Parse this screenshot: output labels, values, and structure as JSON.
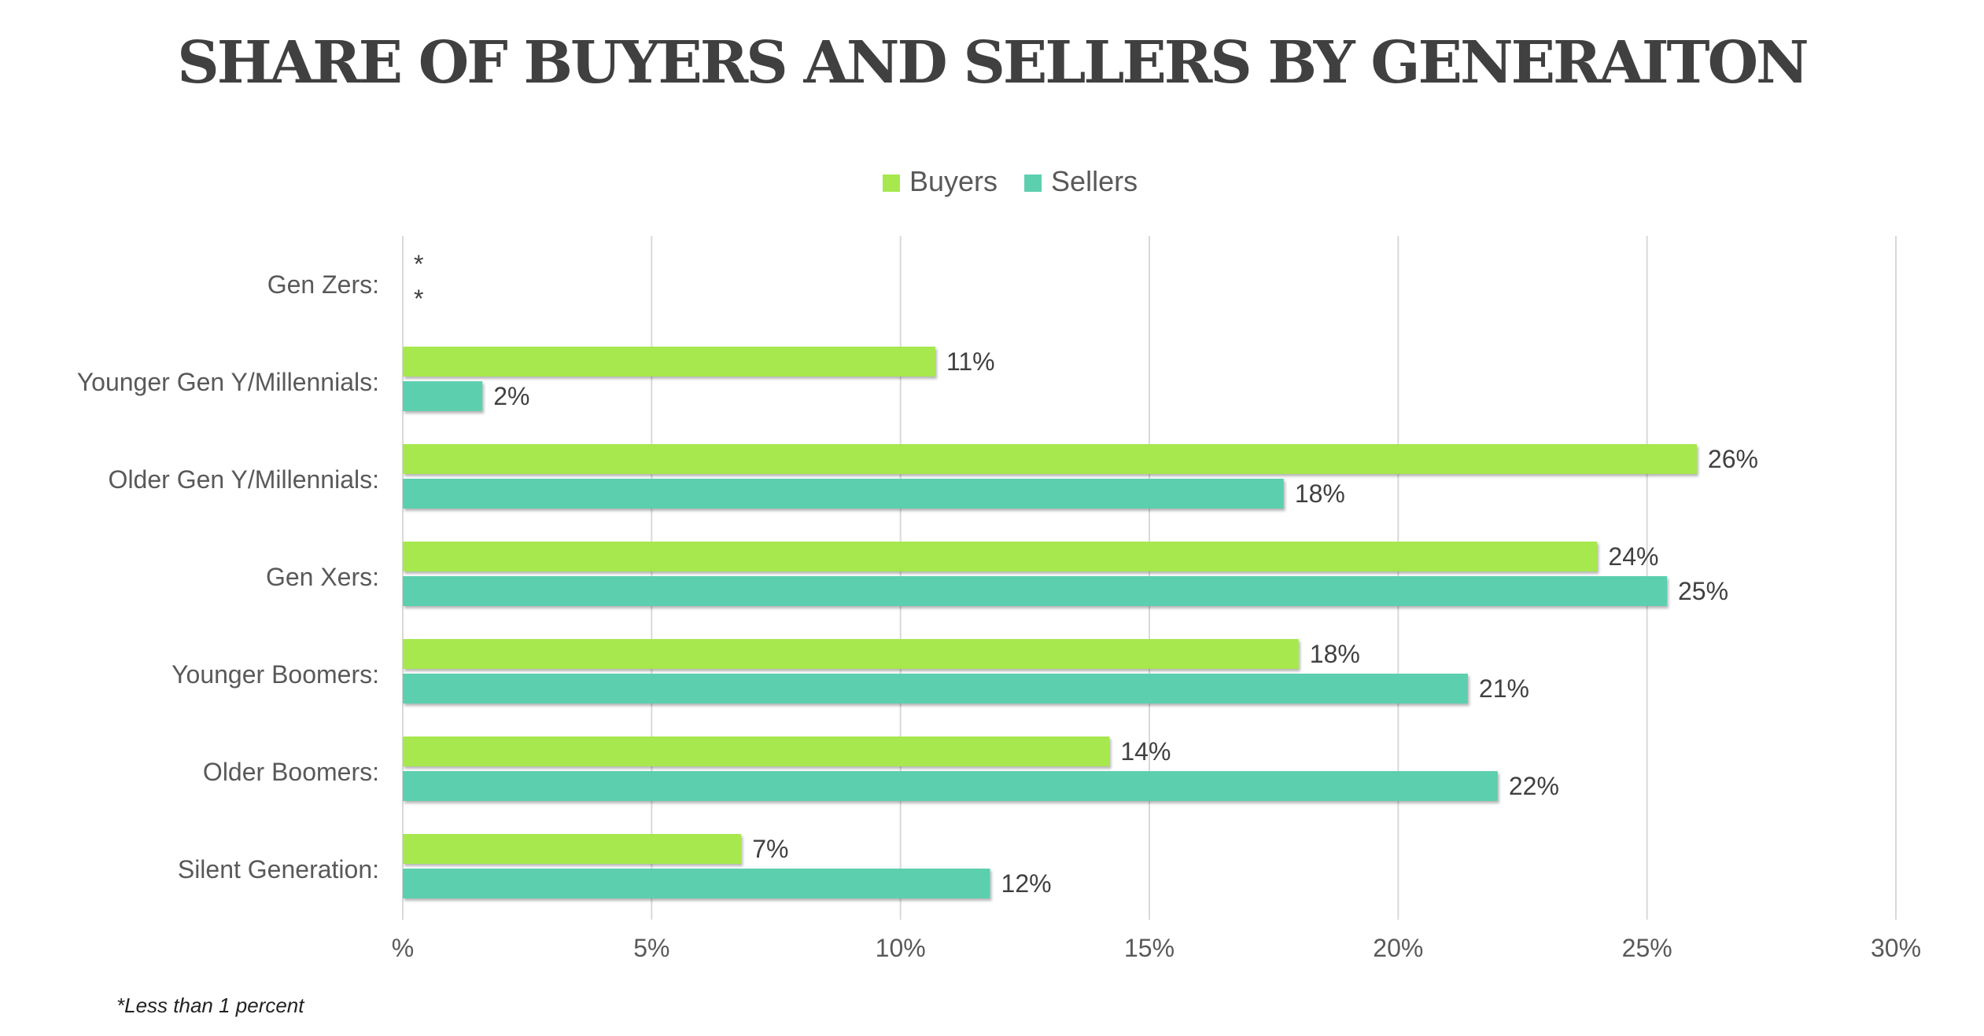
{
  "chart_data": {
    "type": "bar",
    "orientation": "horizontal",
    "title": "SHARE OF BUYERS AND SELLERS BY GENERAITON",
    "categories": [
      "Gen Zers:",
      "Younger Gen Y/Millennials:",
      "Older Gen Y/Millennials:",
      "Gen Xers:",
      "Younger Boomers:",
      "Older Boomers:",
      "Silent Generation:"
    ],
    "series": [
      {
        "name": "Buyers",
        "color": "#a6e84e",
        "values": [
          0.5,
          10.7,
          26.0,
          24.0,
          18.0,
          14.2,
          6.8
        ],
        "labels": [
          "*",
          "11%",
          "26%",
          "24%",
          "18%",
          "14%",
          "7%"
        ]
      },
      {
        "name": "Sellers",
        "color": "#5ccfae",
        "values": [
          0.5,
          1.6,
          17.7,
          25.4,
          21.4,
          22.0,
          11.8
        ],
        "labels": [
          "*",
          "2%",
          "18%",
          "25%",
          "21%",
          "22%",
          "12%"
        ]
      }
    ],
    "xlim": [
      0,
      30
    ],
    "xticks": [
      0,
      5,
      10,
      15,
      20,
      25,
      30
    ],
    "xtick_labels": [
      "%",
      "5%",
      "10%",
      "15%",
      "20%",
      "25%",
      "30%"
    ],
    "grid": true,
    "legend": "top",
    "footnote": "*Less than 1 percent"
  }
}
